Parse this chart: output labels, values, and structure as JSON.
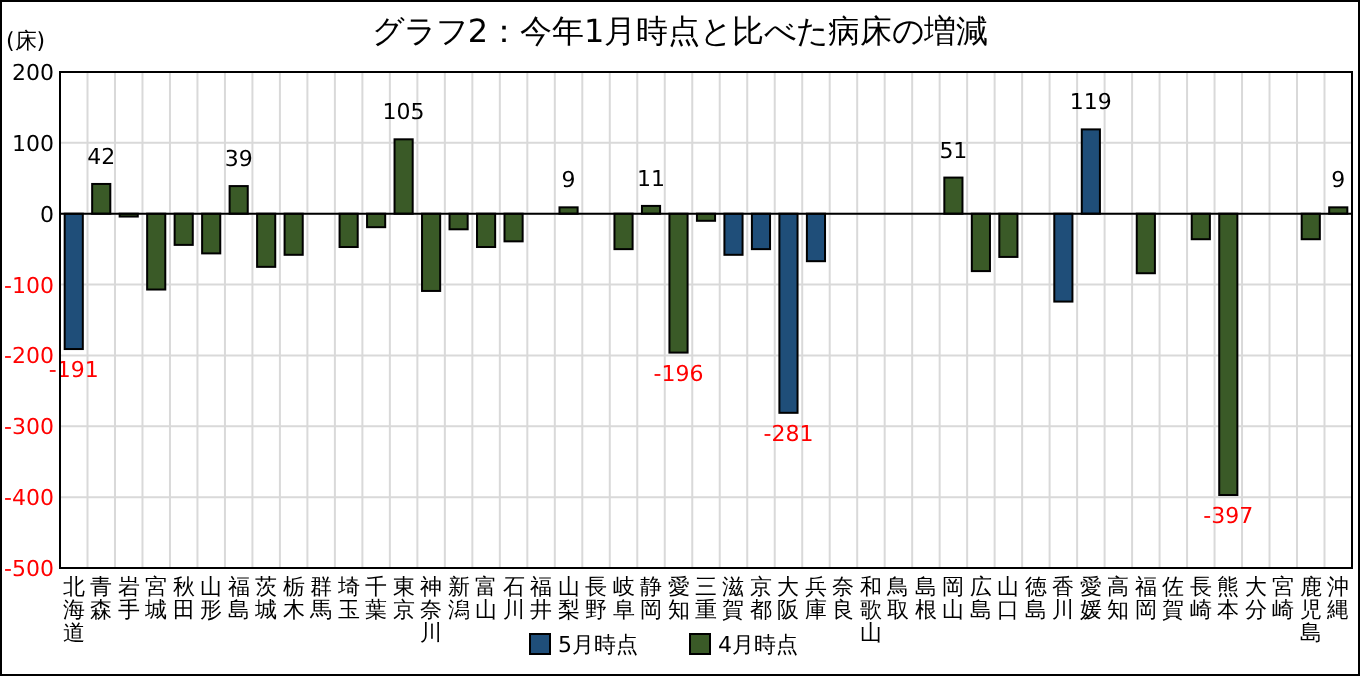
{
  "chart_data": {
    "type": "bar",
    "title": "グラフ2：今年1月時点と比べた病床の増減",
    "ylabel": "(床)",
    "categories": [
      "北海道",
      "青森",
      "岩手",
      "宮城",
      "秋田",
      "山形",
      "福島",
      "茨城",
      "栃木",
      "群馬",
      "埼玉",
      "千葉",
      "東京",
      "神奈川",
      "新潟",
      "富山",
      "石川",
      "福井",
      "山梨",
      "長野",
      "岐阜",
      "静岡",
      "愛知",
      "三重",
      "滋賀",
      "京都",
      "大阪",
      "兵庫",
      "奈良",
      "和歌山",
      "鳥取",
      "島根",
      "岡山",
      "広島",
      "山口",
      "徳島",
      "香川",
      "愛媛",
      "高知",
      "福岡",
      "佐賀",
      "長崎",
      "熊本",
      "大分",
      "宮崎",
      "鹿児島",
      "沖縄"
    ],
    "series": [
      {
        "name": "5月時点",
        "color": "#1f4e79",
        "values": [
          -191,
          null,
          null,
          null,
          null,
          null,
          null,
          null,
          null,
          null,
          null,
          null,
          null,
          null,
          null,
          null,
          null,
          null,
          null,
          null,
          null,
          null,
          null,
          null,
          -58,
          -50,
          -281,
          -67,
          null,
          null,
          null,
          null,
          null,
          null,
          null,
          null,
          -124,
          119,
          null,
          null,
          null,
          null,
          null,
          null,
          null,
          null,
          null
        ],
        "value_labels": [
          "-191",
          null,
          null,
          null,
          null,
          null,
          null,
          null,
          null,
          null,
          null,
          null,
          null,
          null,
          null,
          null,
          null,
          null,
          null,
          null,
          null,
          null,
          null,
          null,
          null,
          null,
          "-281",
          null,
          null,
          null,
          null,
          null,
          null,
          null,
          null,
          null,
          null,
          "119",
          null,
          null,
          null,
          null,
          null,
          null,
          null,
          null,
          null
        ]
      },
      {
        "name": "4月時点",
        "color": "#3a5a27",
        "values": [
          null,
          42,
          -4,
          -107,
          -44,
          -56,
          39,
          -75,
          -58,
          null,
          -47,
          -19,
          105,
          -109,
          -22,
          -47,
          -39,
          null,
          9,
          null,
          -50,
          11,
          -196,
          -10,
          null,
          null,
          null,
          null,
          null,
          null,
          null,
          null,
          51,
          -81,
          -61,
          null,
          null,
          null,
          null,
          -84,
          null,
          -36,
          -397,
          null,
          null,
          -36,
          9
        ],
        "value_labels": [
          null,
          "42",
          null,
          null,
          null,
          null,
          "39",
          null,
          null,
          null,
          null,
          null,
          "105",
          null,
          null,
          null,
          null,
          null,
          "9",
          null,
          null,
          "11",
          "-196",
          null,
          null,
          null,
          null,
          null,
          null,
          null,
          null,
          null,
          "51",
          null,
          null,
          null,
          null,
          null,
          null,
          null,
          null,
          null,
          "-397",
          null,
          null,
          null,
          "9"
        ]
      }
    ],
    "ylim": [
      -500,
      200
    ],
    "yticks": [
      -500,
      -400,
      -300,
      -200,
      -100,
      0,
      100,
      200
    ],
    "grid": true,
    "legend": "bottom"
  }
}
